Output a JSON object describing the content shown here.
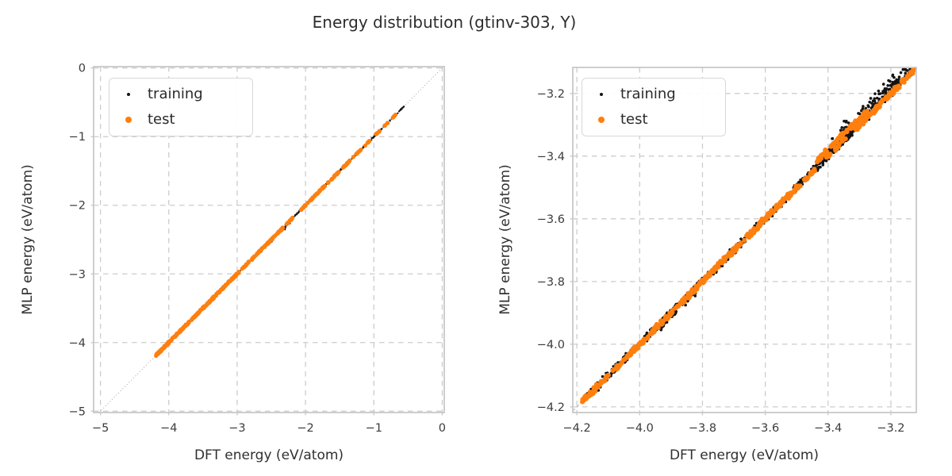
{
  "title": "Energy distribution (gtinv-303, Y)",
  "colors": {
    "training": "#141414",
    "test": "#ff7f0e",
    "grid": "#cccccc",
    "spine": "#c8c8c8",
    "tick_label": "#3b3b3b",
    "axis_label": "#303030",
    "identity_line": "#a9a9a9",
    "legend_border": "#d8d8d8",
    "title_text": "#2d2d2d"
  },
  "chart_data": [
    {
      "type": "scatter",
      "panel": "left",
      "xlabel": "DFT energy (eV/atom)",
      "ylabel": "MLP energy (eV/atom)",
      "xlim": [
        -5.1,
        0.03
      ],
      "ylim": [
        -5.02,
        0.02
      ],
      "xtick_values": [
        -5,
        -4,
        -3,
        -2,
        -1,
        0
      ],
      "xtick_labels": [
        "−5",
        "−4",
        "−3",
        "−2",
        "−1",
        "0"
      ],
      "ytick_values": [
        0,
        -1,
        -2,
        -3,
        -4,
        -5
      ],
      "ytick_labels": [
        "0",
        "−1",
        "−2",
        "−3",
        "−4",
        "−5"
      ],
      "grid": true,
      "identity_line": {
        "style": "dotted"
      },
      "legend_position": "upper-left",
      "seed": 42,
      "series": [
        {
          "name": "training",
          "color": "#141414",
          "marker_radius": 1.1,
          "segments": [
            [
              -4.19,
              -2.96,
              170,
              0,
              0.006
            ],
            [
              -2.96,
              -1.32,
              210,
              0,
              0.007
            ],
            [
              -1.32,
              -0.56,
              90,
              0,
              0.007
            ],
            [
              -2.6,
              -2.2,
              8,
              -0.03,
              0.015
            ],
            [
              -1.92,
              -1.7,
              8,
              0.015,
              0.008
            ]
          ]
        },
        {
          "name": "test",
          "color": "#ff7f0e",
          "marker_radius": 2.6,
          "segments": [
            [
              -4.19,
              -2.97,
              280,
              0,
              0.008
            ],
            [
              -2.94,
              -2.83,
              16,
              0,
              0.006
            ],
            [
              -2.79,
              -2.31,
              75,
              0,
              0.007
            ],
            [
              -2.28,
              -2.18,
              12,
              0,
              0.005
            ],
            [
              -2.08,
              -1.71,
              45,
              0,
              0.006
            ],
            [
              -1.68,
              -1.51,
              24,
              0,
              0.006
            ],
            [
              -1.47,
              -1.29,
              22,
              0,
              0.006
            ],
            [
              -1.26,
              -1.18,
              9,
              0,
              0.005
            ],
            [
              -1.13,
              -1.06,
              7,
              0,
              0.004
            ],
            [
              -0.99,
              -0.91,
              8,
              0,
              0.005
            ],
            [
              -0.85,
              -0.79,
              6,
              0,
              0.004
            ],
            [
              -0.73,
              -0.67,
              6,
              0,
              0.004
            ]
          ]
        }
      ]
    },
    {
      "type": "scatter",
      "panel": "right",
      "xlabel": "DFT energy (eV/atom)",
      "ylabel": "MLP energy (eV/atom)",
      "xlim": [
        -4.213,
        -3.119
      ],
      "ylim": [
        -4.218,
        -3.117
      ],
      "xtick_values": [
        -4.2,
        -4.0,
        -3.8,
        -3.6,
        -3.4,
        -3.2
      ],
      "xtick_labels": [
        "−4.2",
        "−4.0",
        "−3.8",
        "−3.6",
        "−3.4",
        "−3.2"
      ],
      "ytick_values": [
        -3.2,
        -3.4,
        -3.6,
        -3.8,
        -4.0,
        -4.2
      ],
      "ytick_labels": [
        "−3.2",
        "−3.4",
        "−3.6",
        "−3.8",
        "−4.0",
        "−4.2"
      ],
      "grid": true,
      "identity_line": {
        "style": "dashed"
      },
      "legend_position": "upper-left",
      "seed": 1337,
      "series": [
        {
          "name": "training",
          "color": "#141414",
          "marker_radius": 1.8,
          "segments": [
            [
              -4.18,
              -3.45,
              400,
              0,
              0.008
            ],
            [
              -3.94,
              -3.82,
              30,
              -0.013,
              0.006
            ],
            [
              -3.45,
              -3.12,
              260,
              0.003,
              0.009
            ],
            [
              -3.39,
              -3.15,
              85,
              0.03,
              0.016
            ],
            [
              -3.22,
              -3.13,
              30,
              0.018,
              0.01
            ]
          ]
        },
        {
          "name": "test",
          "color": "#ff7f0e",
          "marker_radius": 3.1,
          "segments": [
            [
              -4.183,
              -3.5,
              330,
              0,
              0.005
            ],
            [
              -3.5,
              -3.44,
              18,
              -0.003,
              0.004
            ],
            [
              -3.435,
              -3.27,
              60,
              0.021,
              0.0045
            ],
            [
              -3.41,
              -3.34,
              14,
              0,
              0.004
            ],
            [
              -3.315,
              -3.125,
              95,
              -0.001,
              0.005
            ]
          ]
        }
      ]
    }
  ],
  "legend": {
    "items": [
      {
        "label": "training"
      },
      {
        "label": "test"
      }
    ]
  }
}
